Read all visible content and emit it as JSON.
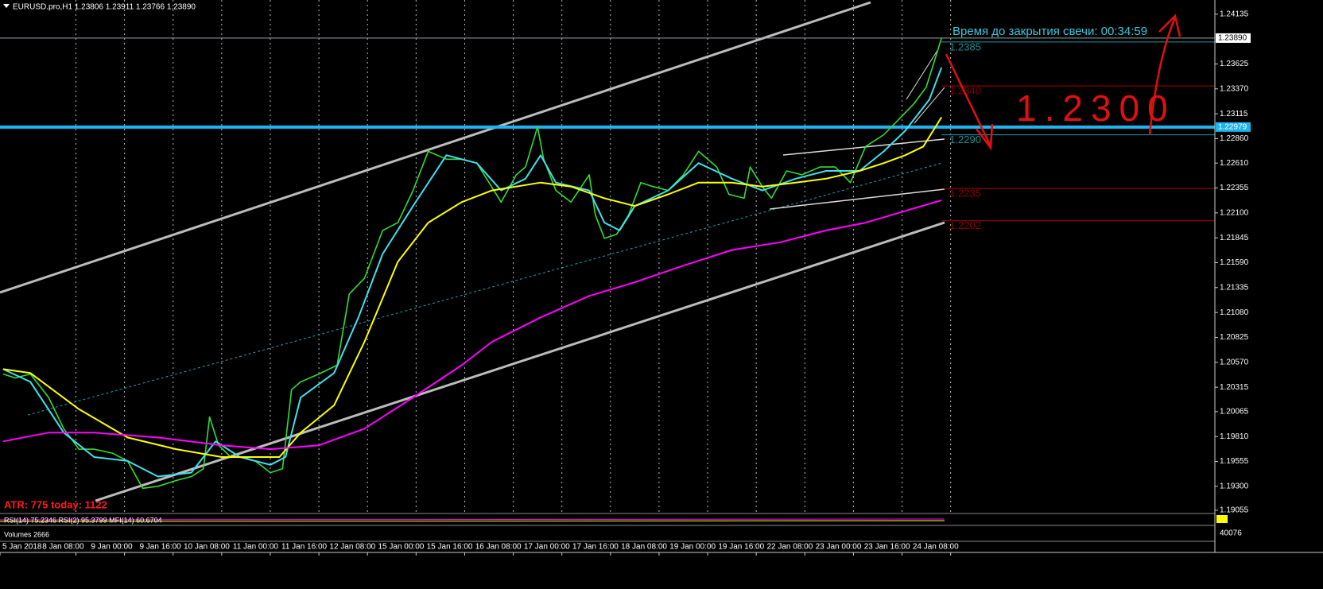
{
  "header": {
    "title": "EURUSD.pro,H1  1.23806 1.23911 1.23766 1.23890"
  },
  "chart_data": {
    "type": "line",
    "xlim": [
      0,
      400
    ],
    "ylim": [
      1.1903,
      1.2428
    ],
    "grid": true,
    "xticks": [
      {
        "value": 0,
        "label": "5 Jan 2018"
      },
      {
        "value": 25,
        "label": "8 Jan 08:00"
      },
      {
        "value": 41,
        "label": "9 Jan 00:00"
      },
      {
        "value": 57,
        "label": "9 Jan 16:00"
      },
      {
        "value": 73,
        "label": "10 Jan 08:00"
      },
      {
        "value": 89,
        "label": "11 Jan 00:00"
      },
      {
        "value": 105,
        "label": "11 Jan 16:00"
      },
      {
        "value": 121,
        "label": "12 Jan 08:00"
      },
      {
        "value": 137,
        "label": "15 Jan 00:00"
      },
      {
        "value": 153,
        "label": "15 Jan 16:00"
      },
      {
        "value": 169,
        "label": "16 Jan 08:00"
      },
      {
        "value": 185,
        "label": "17 Jan 00:00"
      },
      {
        "value": 201,
        "label": "17 Jan 16:00"
      },
      {
        "value": 217,
        "label": "18 Jan 08:00"
      },
      {
        "value": 233,
        "label": "19 Jan 00:00"
      },
      {
        "value": 249,
        "label": "19 Jan 16:00"
      },
      {
        "value": 265,
        "label": "22 Jan 08:00"
      },
      {
        "value": 281,
        "label": "23 Jan 00:00"
      },
      {
        "value": 297,
        "label": "23 Jan 16:00"
      },
      {
        "value": 313,
        "label": "24 Jan 08:00"
      }
    ],
    "yticks": [
      1.24135,
      1.23625,
      {
        "value": 1.2337,
        "label": "1.23370"
      },
      1.23115,
      {
        "value": 1.2286,
        "label": "1.22860"
      },
      {
        "value": 1.2261,
        "label": "1.22610"
      },
      1.22355,
      {
        "value": 1.221,
        "label": "1.22100"
      },
      1.21845,
      {
        "value": 1.2159,
        "label": "1.21590"
      },
      1.21335,
      {
        "value": 1.2108,
        "label": "1.21080"
      },
      1.20825,
      {
        "value": 1.2057,
        "label": "1.20570"
      },
      1.20315,
      1.20065,
      {
        "value": 1.1981,
        "label": "1.19810"
      },
      1.19555,
      {
        "value": 1.193,
        "label": "1.19300"
      },
      1.19055
    ],
    "series": [
      {
        "color": "#33dd33",
        "x": [
          1,
          5,
          10,
          16,
          21,
          26,
          31,
          37,
          42,
          47,
          52,
          58,
          63,
          67,
          69,
          72,
          76,
          80,
          84,
          89,
          93,
          96,
          99,
          105,
          111,
          115,
          120,
          126,
          131,
          136,
          141,
          147,
          152,
          157,
          161,
          165,
          170,
          173,
          177,
          179,
          183,
          188,
          194,
          196,
          199,
          203,
          207,
          211,
          215,
          220,
          225,
          230,
          236,
          240,
          245,
          247,
          251,
          254,
          259,
          264,
          270,
          275,
          280,
          285,
          291,
          296,
          301,
          305,
          309,
          310
        ],
        "values": [
          1.2045,
          1.2041,
          1.2045,
          1.2021,
          1.1989,
          1.1968,
          1.1968,
          1.1964,
          1.1956,
          1.1928,
          1.193,
          1.1936,
          1.194,
          1.1948,
          1.2001,
          1.1972,
          1.196,
          1.196,
          1.1956,
          1.1944,
          1.1948,
          1.2029,
          1.2037,
          1.2045,
          1.2054,
          1.2127,
          1.2143,
          1.2192,
          1.22,
          1.2233,
          1.2273,
          1.2265,
          1.2265,
          1.2261,
          1.2241,
          1.2221,
          1.2249,
          1.2257,
          1.2298,
          1.2265,
          1.2233,
          1.2221,
          1.2249,
          1.2208,
          1.2184,
          1.2188,
          1.2208,
          1.2241,
          1.2237,
          1.2233,
          1.2249,
          1.2273,
          1.2257,
          1.2229,
          1.2225,
          1.2257,
          1.2237,
          1.2225,
          1.2253,
          1.2249,
          1.2257,
          1.2257,
          1.2241,
          1.2278,
          1.229,
          1.2306,
          1.2322,
          1.2339,
          1.2379,
          1.2389
        ]
      },
      {
        "color": "#40e0f0",
        "x": [
          1,
          10,
          21,
          31,
          42,
          52,
          63,
          71,
          79,
          89,
          94,
          99,
          110,
          118,
          126,
          136,
          147,
          157,
          165,
          173,
          178,
          183,
          194,
          199,
          204,
          209,
          220,
          230,
          241,
          251,
          262,
          272,
          283,
          291,
          298,
          306,
          310
        ],
        "values": [
          1.205,
          1.2037,
          1.1985,
          1.196,
          1.1956,
          1.194,
          1.1944,
          1.1976,
          1.196,
          1.1952,
          1.196,
          1.2021,
          1.2046,
          1.2103,
          1.2168,
          1.2217,
          1.2269,
          1.2261,
          1.2233,
          1.2245,
          1.2269,
          1.2241,
          1.2233,
          1.22,
          1.2192,
          1.2217,
          1.2233,
          1.2261,
          1.2245,
          1.2233,
          1.2245,
          1.2253,
          1.2253,
          1.2273,
          1.2294,
          1.2326,
          1.2359
        ]
      },
      {
        "color": "#ffff00",
        "x": [
          1,
          10,
          26,
          42,
          58,
          73,
          92,
          99,
          110,
          120,
          131,
          141,
          152,
          162,
          178,
          188,
          199,
          209,
          220,
          230,
          241,
          251,
          262,
          272,
          283,
          291,
          298,
          304,
          310
        ],
        "values": [
          1.205,
          1.2046,
          1.2009,
          1.198,
          1.1968,
          1.196,
          1.196,
          1.1985,
          1.2013,
          1.2078,
          1.216,
          1.22,
          1.2221,
          1.2233,
          1.2241,
          1.2237,
          1.2225,
          1.2217,
          1.2229,
          1.2241,
          1.2241,
          1.2237,
          1.2241,
          1.2245,
          1.2253,
          1.2261,
          1.2269,
          1.2278,
          1.2308
        ]
      },
      {
        "color": "#ff00ff",
        "x": [
          1,
          16,
          31,
          52,
          73,
          89,
          105,
          120,
          136,
          152,
          162,
          178,
          194,
          209,
          225,
          241,
          257,
          272,
          285,
          298,
          310
        ],
        "values": [
          1.1976,
          1.1985,
          1.1985,
          1.198,
          1.1972,
          1.1968,
          1.1972,
          1.1989,
          1.2021,
          1.2054,
          1.2078,
          1.2103,
          1.2125,
          1.2139,
          1.2156,
          1.2172,
          1.218,
          1.2192,
          1.22,
          1.2212,
          1.2223
        ]
      }
    ],
    "levels": [
      {
        "value": 1.2385,
        "label": "1.2385",
        "color": "#1e8c96"
      },
      {
        "value": 1.234,
        "label": "1.2340",
        "color": "#8b0000"
      },
      {
        "value": 1.229,
        "label": "1.2290",
        "color": "#1e8c96"
      },
      {
        "value": 1.2235,
        "label": "1.2235",
        "color": "#8b0000"
      },
      {
        "value": 1.2202,
        "label": "1.2202",
        "color": "#8b0000"
      }
    ],
    "markers": [
      {
        "value": 1.2389,
        "label": "1.23890",
        "color": "#9aa3ad"
      },
      {
        "value": 1.22979,
        "label": "1.22979",
        "color": "#1eb4f0"
      }
    ],
    "annotations": {
      "countdown": "Время до закрытия свечи: 00:34:59",
      "target": "1.2300",
      "atr": "ATR: 775  today: 1122"
    }
  },
  "indicators": {
    "oscillators": "RSI(14) 75.2346  RSI(2) 95.3799  MFI(14) 60.6704",
    "volumes": "Volumes 2666",
    "volume_axis": "40076"
  }
}
